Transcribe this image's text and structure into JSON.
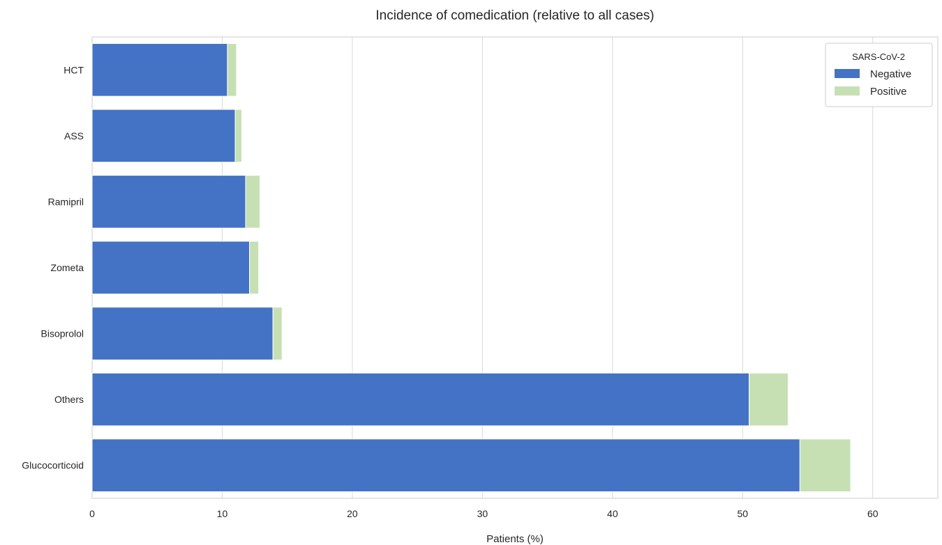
{
  "chart_data": {
    "type": "bar",
    "orientation": "horizontal",
    "stacked": true,
    "title": "Incidence of comedication (relative to all cases)",
    "xlabel": "Patients (%)",
    "ylabel": "",
    "categories": [
      "HCT",
      "ASS",
      "Ramipril",
      "Zometa",
      "Bisoprolol",
      "Others",
      "Glucocorticoid"
    ],
    "series": [
      {
        "name": "Negative",
        "color": "#4472c4",
        "values": [
          10.4,
          11.0,
          11.8,
          12.1,
          13.9,
          50.5,
          54.4
        ]
      },
      {
        "name": "Positive",
        "color": "#c6e0b4",
        "values": [
          0.7,
          0.5,
          1.1,
          0.7,
          0.7,
          3.0,
          3.9
        ]
      }
    ],
    "xlim": [
      0,
      65
    ],
    "xticks": [
      0,
      10,
      20,
      30,
      40,
      50,
      60
    ],
    "xtick_labels": [
      "0",
      "10",
      "20",
      "30",
      "40",
      "50",
      "60"
    ],
    "grid": "vertical",
    "legend": {
      "title": "SARS-CoV-2",
      "placement": "top-right"
    }
  }
}
